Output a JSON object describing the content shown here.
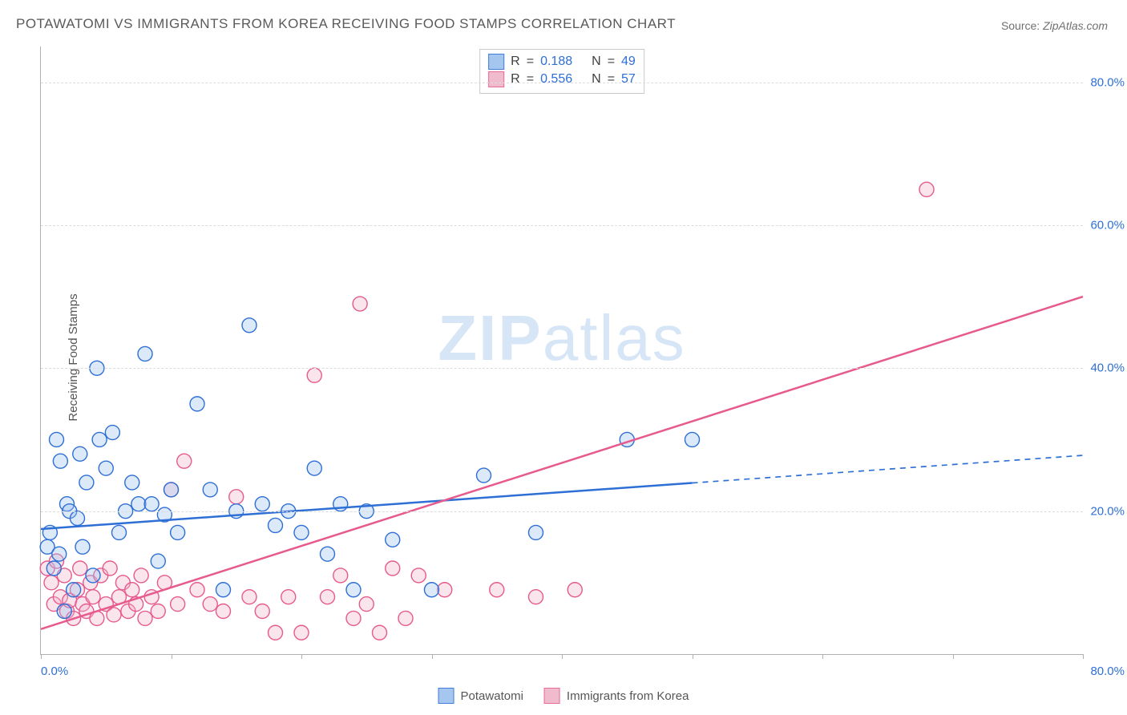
{
  "title": "POTAWATOMI VS IMMIGRANTS FROM KOREA RECEIVING FOOD STAMPS CORRELATION CHART",
  "source_label": "Source: ",
  "source_value": "ZipAtlas.com",
  "ylabel": "Receiving Food Stamps",
  "watermark_part1": "ZIP",
  "watermark_part2": "atlas",
  "chart": {
    "type": "scatter",
    "xlim": [
      0,
      80
    ],
    "ylim": [
      0,
      85
    ],
    "x_tick_positions": [
      0,
      10,
      20,
      30,
      40,
      50,
      60,
      70,
      80
    ],
    "x_tick_labels_shown": {
      "first": "0.0%",
      "last": "80.0%"
    },
    "y_grid": [
      {
        "v": 20,
        "label": "20.0%"
      },
      {
        "v": 40,
        "label": "40.0%"
      },
      {
        "v": 60,
        "label": "60.0%"
      },
      {
        "v": 80,
        "label": "80.0%"
      }
    ],
    "background_color": "#ffffff",
    "grid_color": "#dcdcdc",
    "axis_color": "#b0b0b0",
    "tick_label_color": "#2e6fd6",
    "marker_radius": 9,
    "marker_fill_opacity": 0.35,
    "marker_stroke_width": 1.4,
    "line_width": 2.5,
    "series": [
      {
        "name": "Potawatomi",
        "color_stroke": "#2e6fd6",
        "color_fill": "#9cc0ee",
        "R": "0.188",
        "N": "49",
        "trend": {
          "x1": 0,
          "y1": 17.5,
          "x2": 50,
          "y2": 24,
          "ext_x2": 80,
          "ext_y2": 27.8,
          "dashed_from": 50
        },
        "points": [
          [
            0.5,
            15
          ],
          [
            0.7,
            17
          ],
          [
            1,
            12
          ],
          [
            1.2,
            30
          ],
          [
            1.4,
            14
          ],
          [
            1.5,
            27
          ],
          [
            1.8,
            6
          ],
          [
            2,
            21
          ],
          [
            2.2,
            20
          ],
          [
            2.5,
            9
          ],
          [
            2.8,
            19
          ],
          [
            3,
            28
          ],
          [
            3.2,
            15
          ],
          [
            3.5,
            24
          ],
          [
            4,
            11
          ],
          [
            4.3,
            40
          ],
          [
            4.5,
            30
          ],
          [
            5,
            26
          ],
          [
            5.5,
            31
          ],
          [
            6,
            17
          ],
          [
            6.5,
            20
          ],
          [
            7,
            24
          ],
          [
            7.5,
            21
          ],
          [
            8,
            42
          ],
          [
            8.5,
            21
          ],
          [
            9,
            13
          ],
          [
            9.5,
            19.5
          ],
          [
            10,
            23
          ],
          [
            10.5,
            17
          ],
          [
            12,
            35
          ],
          [
            13,
            23
          ],
          [
            14,
            9
          ],
          [
            15,
            20
          ],
          [
            16,
            46
          ],
          [
            17,
            21
          ],
          [
            18,
            18
          ],
          [
            19,
            20
          ],
          [
            20,
            17
          ],
          [
            21,
            26
          ],
          [
            22,
            14
          ],
          [
            23,
            21
          ],
          [
            24,
            9
          ],
          [
            25,
            20
          ],
          [
            27,
            16
          ],
          [
            30,
            9
          ],
          [
            34,
            25
          ],
          [
            38,
            17
          ],
          [
            45,
            30
          ],
          [
            50,
            30
          ]
        ]
      },
      {
        "name": "Immigrants from Korea",
        "color_stroke": "#e75a8d",
        "color_fill": "#f0b4c9",
        "R": "0.556",
        "N": "57",
        "trend": {
          "x1": 0,
          "y1": 3.5,
          "x2": 80,
          "y2": 50,
          "dashed_from": null
        },
        "points": [
          [
            0.5,
            12
          ],
          [
            0.8,
            10
          ],
          [
            1,
            7
          ],
          [
            1.2,
            13
          ],
          [
            1.5,
            8
          ],
          [
            1.8,
            11
          ],
          [
            2,
            6
          ],
          [
            2.2,
            7.5
          ],
          [
            2.5,
            5
          ],
          [
            2.8,
            9
          ],
          [
            3,
            12
          ],
          [
            3.2,
            7
          ],
          [
            3.5,
            6
          ],
          [
            3.8,
            10
          ],
          [
            4,
            8
          ],
          [
            4.3,
            5
          ],
          [
            4.6,
            11
          ],
          [
            5,
            7
          ],
          [
            5.3,
            12
          ],
          [
            5.6,
            5.5
          ],
          [
            6,
            8
          ],
          [
            6.3,
            10
          ],
          [
            6.7,
            6
          ],
          [
            7,
            9
          ],
          [
            7.3,
            7
          ],
          [
            7.7,
            11
          ],
          [
            8,
            5
          ],
          [
            8.5,
            8
          ],
          [
            9,
            6
          ],
          [
            9.5,
            10
          ],
          [
            10,
            23
          ],
          [
            10.5,
            7
          ],
          [
            11,
            27
          ],
          [
            12,
            9
          ],
          [
            13,
            7
          ],
          [
            14,
            6
          ],
          [
            15,
            22
          ],
          [
            16,
            8
          ],
          [
            17,
            6
          ],
          [
            18,
            3
          ],
          [
            19,
            8
          ],
          [
            20,
            3
          ],
          [
            21,
            39
          ],
          [
            22,
            8
          ],
          [
            23,
            11
          ],
          [
            24,
            5
          ],
          [
            24.5,
            49
          ],
          [
            25,
            7
          ],
          [
            26,
            3
          ],
          [
            27,
            12
          ],
          [
            28,
            5
          ],
          [
            29,
            11
          ],
          [
            31,
            9
          ],
          [
            35,
            9
          ],
          [
            38,
            8
          ],
          [
            41,
            9
          ],
          [
            68,
            65
          ]
        ]
      }
    ]
  },
  "stats_labels": {
    "R": "R",
    "eq": "=",
    "N": "N"
  },
  "legend_labels": [
    "Potawatomi",
    "Immigrants from Korea"
  ]
}
